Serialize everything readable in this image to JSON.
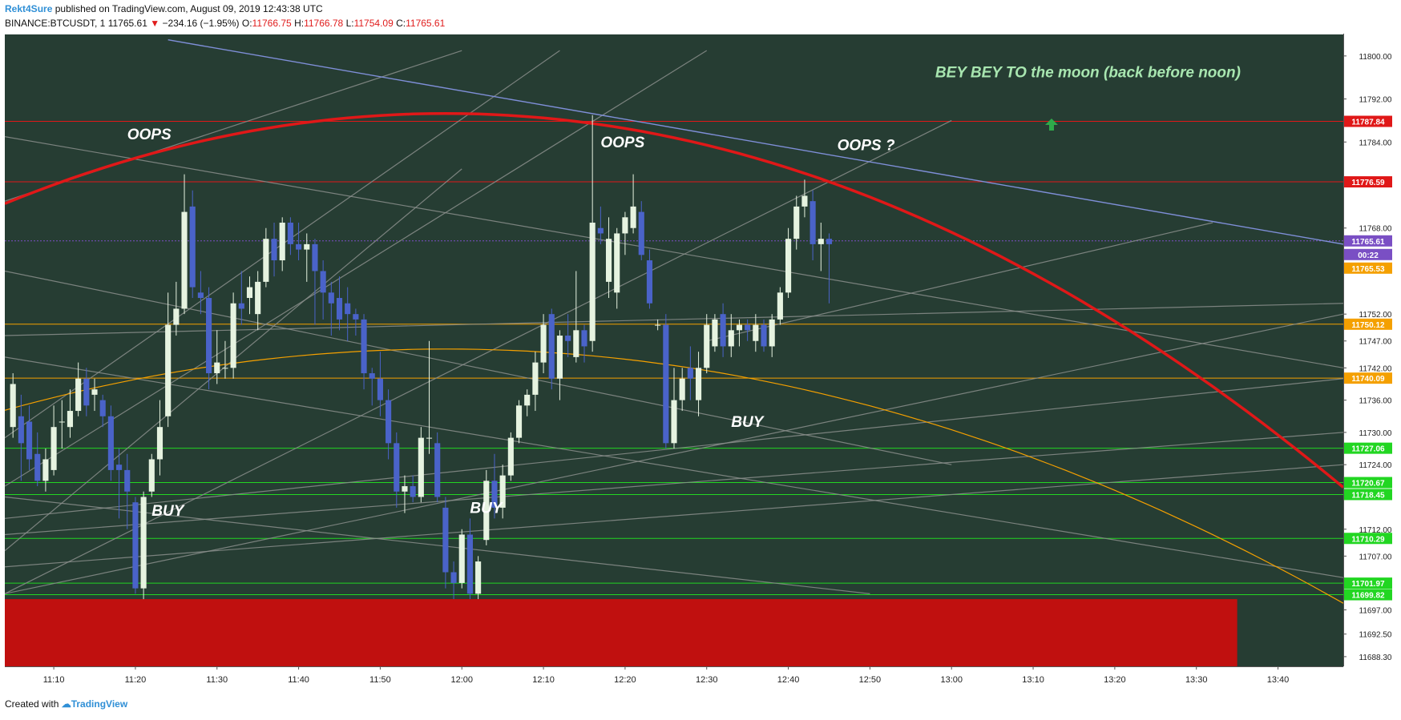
{
  "header": {
    "author": "Rekt4Sure",
    "published_text": "published on TradingView.com, August 09, 2019 12:43:38 UTC",
    "symbol": "BINANCE:BTCUSDT, 1",
    "last_price": "11765.61",
    "change": "−2 34.16 (−1.95%)",
    "change_clean": "−234.16 (−1.95%)",
    "o_label": "O:",
    "o_value": "11766.75",
    "h_label": "H:",
    "h_value": "11766.78",
    "l_label": "L:",
    "l_value": "11754.09",
    "c_label": "C:",
    "c_value": "11765.61"
  },
  "footer": {
    "created_with": "Created with",
    "brand": "TradingView"
  },
  "colors": {
    "chart_bg": "#263d33",
    "axis_bg": "#ffffff",
    "bull": "#e6f3e0",
    "bear": "#4a63c9",
    "red_curve": "#e01818",
    "orange": "#f4a000",
    "green_line": "#22d622",
    "gray_line": "#8a8f8c",
    "blue_line": "#7f8fd8",
    "red_zone": "#c0100f"
  },
  "chart_data": {
    "type": "candlestick",
    "ylim": [
      11686.5,
      11804
    ],
    "x_time_range": [
      "11:04",
      "13:48"
    ],
    "x_ticks": [
      "11:10",
      "11:20",
      "11:30",
      "11:40",
      "11:50",
      "12:00",
      "12:10",
      "12:20",
      "12:30",
      "12:40",
      "12:50",
      "13:00",
      "13:10",
      "13:20",
      "13:30",
      "13:40"
    ],
    "y_ticks": [
      "11800.00",
      "11792.00",
      "11784.00",
      "11768.00",
      "11752.00",
      "11747.00",
      "11742.00",
      "11736.00",
      "11730.00",
      "11724.00",
      "11712.00",
      "11707.00",
      "11697.00",
      "11692.50",
      "11688.30"
    ],
    "price_labels": [
      {
        "value": 11787.84,
        "text": "11787.84",
        "color": "#e01818",
        "style": "line"
      },
      {
        "value": 11776.59,
        "text": "11776.59",
        "color": "#e01818",
        "style": "line"
      },
      {
        "value": 11765.61,
        "text": "11765.61",
        "color": "#7a4fc4",
        "style": "dotted"
      },
      {
        "value": 11761.0,
        "text": "00:22",
        "color": "#7a4fc4",
        "style": "none"
      },
      {
        "value": 11765.53,
        "text": "11765.53",
        "color": "#f4a000",
        "style": "none"
      },
      {
        "value": 11750.12,
        "text": "11750.12",
        "color": "#f4a000",
        "style": "line"
      },
      {
        "value": 11740.09,
        "text": "11740.09",
        "color": "#f4a000",
        "style": "line"
      },
      {
        "value": 11727.06,
        "text": "11727.06",
        "color": "#22d622",
        "style": "line"
      },
      {
        "value": 11720.67,
        "text": "11720.67",
        "color": "#22d622",
        "style": "line"
      },
      {
        "value": 11718.45,
        "text": "11718.45",
        "color": "#22d622",
        "style": "line"
      },
      {
        "value": 11710.29,
        "text": "11710.29",
        "color": "#22d622",
        "style": "line"
      },
      {
        "value": 11701.97,
        "text": "11701.97",
        "color": "#22d622",
        "style": "line"
      },
      {
        "value": 11699.82,
        "text": "11699.82",
        "color": "#22d622",
        "style": "line"
      }
    ],
    "annotations": [
      {
        "text": "OOPS",
        "time": "11:19",
        "price": 11784.5
      },
      {
        "text": "OOPS",
        "time": "12:17",
        "price": 11783.0
      },
      {
        "text": "OOPS ?",
        "time": "12:46",
        "price": 11782.5
      },
      {
        "text": "BUY",
        "time": "11:22",
        "price": 11714.5
      },
      {
        "text": "BUY",
        "time": "12:01",
        "price": 11715.0
      },
      {
        "text": "BUY",
        "time": "12:33",
        "price": 11731.0
      },
      {
        "text": "BEY BEY  TO the moon (back before noon)",
        "time": "12:58",
        "price": 11796.0
      }
    ],
    "candles": [
      {
        "t": "11:05",
        "o": 11731,
        "h": 11741,
        "l": 11729,
        "c": 11739
      },
      {
        "t": "11:06",
        "o": 11733,
        "h": 11737,
        "l": 11721,
        "c": 11728
      },
      {
        "t": "11:07",
        "o": 11732,
        "h": 11735,
        "l": 11723,
        "c": 11725
      },
      {
        "t": "11:08",
        "o": 11726,
        "h": 11730,
        "l": 11720,
        "c": 11721
      },
      {
        "t": "11:09",
        "o": 11721,
        "h": 11727,
        "l": 11719,
        "c": 11725
      },
      {
        "t": "11:10",
        "o": 11723,
        "h": 11735,
        "l": 11722,
        "c": 11731
      },
      {
        "t": "11:11",
        "o": 11732,
        "h": 11736,
        "l": 11727,
        "c": 11732
      },
      {
        "t": "11:12",
        "o": 11731,
        "h": 11738,
        "l": 11729,
        "c": 11734
      },
      {
        "t": "11:13",
        "o": 11734,
        "h": 11743,
        "l": 11733,
        "c": 11740
      },
      {
        "t": "11:14",
        "o": 11740,
        "h": 11742,
        "l": 11733,
        "c": 11735
      },
      {
        "t": "11:15",
        "o": 11737,
        "h": 11740,
        "l": 11734,
        "c": 11738
      },
      {
        "t": "11:16",
        "o": 11736,
        "h": 11737,
        "l": 11731,
        "c": 11733
      },
      {
        "t": "11:17",
        "o": 11733,
        "h": 11735,
        "l": 11721,
        "c": 11723
      },
      {
        "t": "11:18",
        "o": 11724,
        "h": 11727,
        "l": 11714,
        "c": 11723
      },
      {
        "t": "11:19",
        "o": 11723,
        "h": 11726,
        "l": 11712,
        "c": 11719
      },
      {
        "t": "11:20",
        "o": 11717,
        "h": 11718,
        "l": 11700,
        "c": 11701
      },
      {
        "t": "11:21",
        "o": 11701,
        "h": 11719,
        "l": 11699,
        "c": 11718
      },
      {
        "t": "11:22",
        "o": 11719,
        "h": 11726,
        "l": 11718,
        "c": 11725
      },
      {
        "t": "11:23",
        "o": 11725,
        "h": 11736,
        "l": 11722,
        "c": 11731
      },
      {
        "t": "11:24",
        "o": 11733,
        "h": 11756,
        "l": 11731,
        "c": 11750
      },
      {
        "t": "11:25",
        "o": 11750,
        "h": 11758,
        "l": 11748,
        "c": 11753
      },
      {
        "t": "11:26",
        "o": 11753,
        "h": 11778,
        "l": 11752,
        "c": 11771
      },
      {
        "t": "11:27",
        "o": 11772,
        "h": 11775,
        "l": 11755,
        "c": 11757
      },
      {
        "t": "11:28",
        "o": 11756,
        "h": 11760,
        "l": 11752,
        "c": 11755
      },
      {
        "t": "11:29",
        "o": 11755,
        "h": 11757,
        "l": 11738,
        "c": 11741
      },
      {
        "t": "11:30",
        "o": 11741,
        "h": 11749,
        "l": 11739,
        "c": 11743
      },
      {
        "t": "11:31",
        "o": 11742,
        "h": 11747,
        "l": 11740,
        "c": 11742
      },
      {
        "t": "11:32",
        "o": 11742,
        "h": 11756,
        "l": 11740,
        "c": 11754
      },
      {
        "t": "11:33",
        "o": 11754,
        "h": 11760,
        "l": 11750,
        "c": 11753
      },
      {
        "t": "11:34",
        "o": 11755,
        "h": 11759,
        "l": 11752,
        "c": 11757
      },
      {
        "t": "11:35",
        "o": 11752,
        "h": 11760,
        "l": 11749,
        "c": 11758
      },
      {
        "t": "11:36",
        "o": 11758,
        "h": 11768,
        "l": 11757,
        "c": 11766
      },
      {
        "t": "11:37",
        "o": 11766,
        "h": 11769,
        "l": 11759,
        "c": 11762
      },
      {
        "t": "11:38",
        "o": 11762,
        "h": 11770,
        "l": 11760,
        "c": 11769
      },
      {
        "t": "11:39",
        "o": 11769,
        "h": 11770,
        "l": 11763,
        "c": 11765
      },
      {
        "t": "11:40",
        "o": 11765,
        "h": 11769,
        "l": 11762,
        "c": 11764
      },
      {
        "t": "11:41",
        "o": 11764,
        "h": 11767,
        "l": 11758,
        "c": 11765
      },
      {
        "t": "11:42",
        "o": 11765,
        "h": 11766,
        "l": 11750,
        "c": 11760
      },
      {
        "t": "11:43",
        "o": 11760,
        "h": 11762,
        "l": 11751,
        "c": 11756
      },
      {
        "t": "11:44",
        "o": 11756,
        "h": 11758,
        "l": 11748,
        "c": 11754
      },
      {
        "t": "11:45",
        "o": 11755,
        "h": 11759,
        "l": 11749,
        "c": 11751
      },
      {
        "t": "11:46",
        "o": 11754,
        "h": 11757,
        "l": 11747,
        "c": 11752
      },
      {
        "t": "11:47",
        "o": 11752,
        "h": 11753,
        "l": 11748,
        "c": 11751
      },
      {
        "t": "11:48",
        "o": 11751,
        "h": 11752,
        "l": 11738,
        "c": 11741
      },
      {
        "t": "11:49",
        "o": 11741,
        "h": 11742,
        "l": 11735,
        "c": 11740
      },
      {
        "t": "11:50",
        "o": 11740,
        "h": 11745,
        "l": 11733,
        "c": 11736
      },
      {
        "t": "11:51",
        "o": 11736,
        "h": 11738,
        "l": 11725,
        "c": 11728
      },
      {
        "t": "11:52",
        "o": 11728,
        "h": 11730,
        "l": 11716,
        "c": 11719
      },
      {
        "t": "11:53",
        "o": 11719,
        "h": 11722,
        "l": 11715,
        "c": 11720
      },
      {
        "t": "11:54",
        "o": 11720,
        "h": 11722,
        "l": 11717,
        "c": 11718
      },
      {
        "t": "11:55",
        "o": 11718,
        "h": 11731,
        "l": 11717,
        "c": 11729
      },
      {
        "t": "11:56",
        "o": 11729,
        "h": 11747,
        "l": 11726,
        "c": 11729
      },
      {
        "t": "11:57",
        "o": 11728,
        "h": 11730,
        "l": 11717,
        "c": 11718
      },
      {
        "t": "11:58",
        "o": 11716,
        "h": 11718,
        "l": 11701,
        "c": 11704
      },
      {
        "t": "11:59",
        "o": 11704,
        "h": 11706,
        "l": 11699,
        "c": 11702
      },
      {
        "t": "12:00",
        "o": 11702,
        "h": 11712,
        "l": 11701,
        "c": 11711
      },
      {
        "t": "12:01",
        "o": 11711,
        "h": 11714,
        "l": 11699,
        "c": 11700
      },
      {
        "t": "12:02",
        "o": 11700,
        "h": 11707,
        "l": 11699,
        "c": 11706
      },
      {
        "t": "12:03",
        "o": 11710,
        "h": 11723,
        "l": 11709,
        "c": 11721
      },
      {
        "t": "12:04",
        "o": 11721,
        "h": 11726,
        "l": 11714,
        "c": 11716
      },
      {
        "t": "12:05",
        "o": 11716,
        "h": 11724,
        "l": 11714,
        "c": 11722
      },
      {
        "t": "12:06",
        "o": 11722,
        "h": 11730,
        "l": 11721,
        "c": 11729
      },
      {
        "t": "12:07",
        "o": 11729,
        "h": 11736,
        "l": 11728,
        "c": 11735
      },
      {
        "t": "12:08",
        "o": 11735,
        "h": 11738,
        "l": 11733,
        "c": 11737
      },
      {
        "t": "12:09",
        "o": 11737,
        "h": 11745,
        "l": 11734,
        "c": 11743
      },
      {
        "t": "12:10",
        "o": 11743,
        "h": 11752,
        "l": 11741,
        "c": 11750
      },
      {
        "t": "12:11",
        "o": 11752,
        "h": 11753,
        "l": 11738,
        "c": 11740
      },
      {
        "t": "12:12",
        "o": 11740,
        "h": 11749,
        "l": 11736,
        "c": 11748
      },
      {
        "t": "12:13",
        "o": 11748,
        "h": 11752,
        "l": 11744,
        "c": 11747
      },
      {
        "t": "12:14",
        "o": 11744,
        "h": 11760,
        "l": 11743,
        "c": 11749
      },
      {
        "t": "12:15",
        "o": 11749,
        "h": 11750,
        "l": 11743,
        "c": 11746
      },
      {
        "t": "12:16",
        "o": 11747,
        "h": 11789,
        "l": 11745,
        "c": 11769
      },
      {
        "t": "12:17",
        "o": 11768,
        "h": 11772,
        "l": 11765,
        "c": 11767
      },
      {
        "t": "12:18",
        "o": 11758,
        "h": 11770,
        "l": 11755,
        "c": 11766
      },
      {
        "t": "12:19",
        "o": 11756,
        "h": 11768,
        "l": 11753,
        "c": 11767
      },
      {
        "t": "12:20",
        "o": 11767,
        "h": 11771,
        "l": 11763,
        "c": 11770
      },
      {
        "t": "12:21",
        "o": 11768,
        "h": 11778,
        "l": 11767,
        "c": 11772
      },
      {
        "t": "12:22",
        "o": 11771,
        "h": 11773,
        "l": 11762,
        "c": 11763
      },
      {
        "t": "12:23",
        "o": 11762,
        "h": 11764,
        "l": 11753,
        "c": 11754
      },
      {
        "t": "12:24",
        "o": 11750,
        "h": 11751,
        "l": 11749,
        "c": 11750
      },
      {
        "t": "12:25",
        "o": 11750,
        "h": 11752,
        "l": 11727,
        "c": 11728
      },
      {
        "t": "12:26",
        "o": 11728,
        "h": 11742,
        "l": 11727,
        "c": 11736
      },
      {
        "t": "12:27",
        "o": 11736,
        "h": 11742,
        "l": 11734,
        "c": 11740
      },
      {
        "t": "12:28",
        "o": 11742,
        "h": 11746,
        "l": 11736,
        "c": 11740
      },
      {
        "t": "12:29",
        "o": 11736,
        "h": 11745,
        "l": 11733,
        "c": 11742
      },
      {
        "t": "12:30",
        "o": 11742,
        "h": 11752,
        "l": 11741,
        "c": 11750
      },
      {
        "t": "12:31",
        "o": 11746,
        "h": 11752,
        "l": 11745,
        "c": 11751
      },
      {
        "t": "12:32",
        "o": 11752,
        "h": 11754,
        "l": 11744,
        "c": 11746
      },
      {
        "t": "12:33",
        "o": 11746,
        "h": 11752,
        "l": 11744,
        "c": 11749
      },
      {
        "t": "12:34",
        "o": 11749,
        "h": 11751,
        "l": 11746,
        "c": 11750
      },
      {
        "t": "12:35",
        "o": 11750,
        "h": 11751,
        "l": 11747,
        "c": 11749
      },
      {
        "t": "12:36",
        "o": 11747,
        "h": 11752,
        "l": 11745,
        "c": 11750
      },
      {
        "t": "12:37",
        "o": 11750,
        "h": 11751,
        "l": 11745,
        "c": 11746
      },
      {
        "t": "12:38",
        "o": 11746,
        "h": 11752,
        "l": 11744,
        "c": 11751
      },
      {
        "t": "12:39",
        "o": 11751,
        "h": 11757,
        "l": 11750,
        "c": 11756
      },
      {
        "t": "12:40",
        "o": 11756,
        "h": 11768,
        "l": 11755,
        "c": 11766
      },
      {
        "t": "12:41",
        "o": 11766,
        "h": 11774,
        "l": 11764,
        "c": 11772
      },
      {
        "t": "12:42",
        "o": 11772,
        "h": 11777,
        "l": 11770,
        "c": 11774
      },
      {
        "t": "12:43",
        "o": 11773,
        "h": 11775,
        "l": 11762,
        "c": 11765
      },
      {
        "t": "12:44",
        "o": 11765,
        "h": 11769,
        "l": 11760,
        "c": 11766
      },
      {
        "t": "12:45",
        "o": 11766,
        "h": 11767,
        "l": 11754,
        "c": 11765
      }
    ]
  }
}
